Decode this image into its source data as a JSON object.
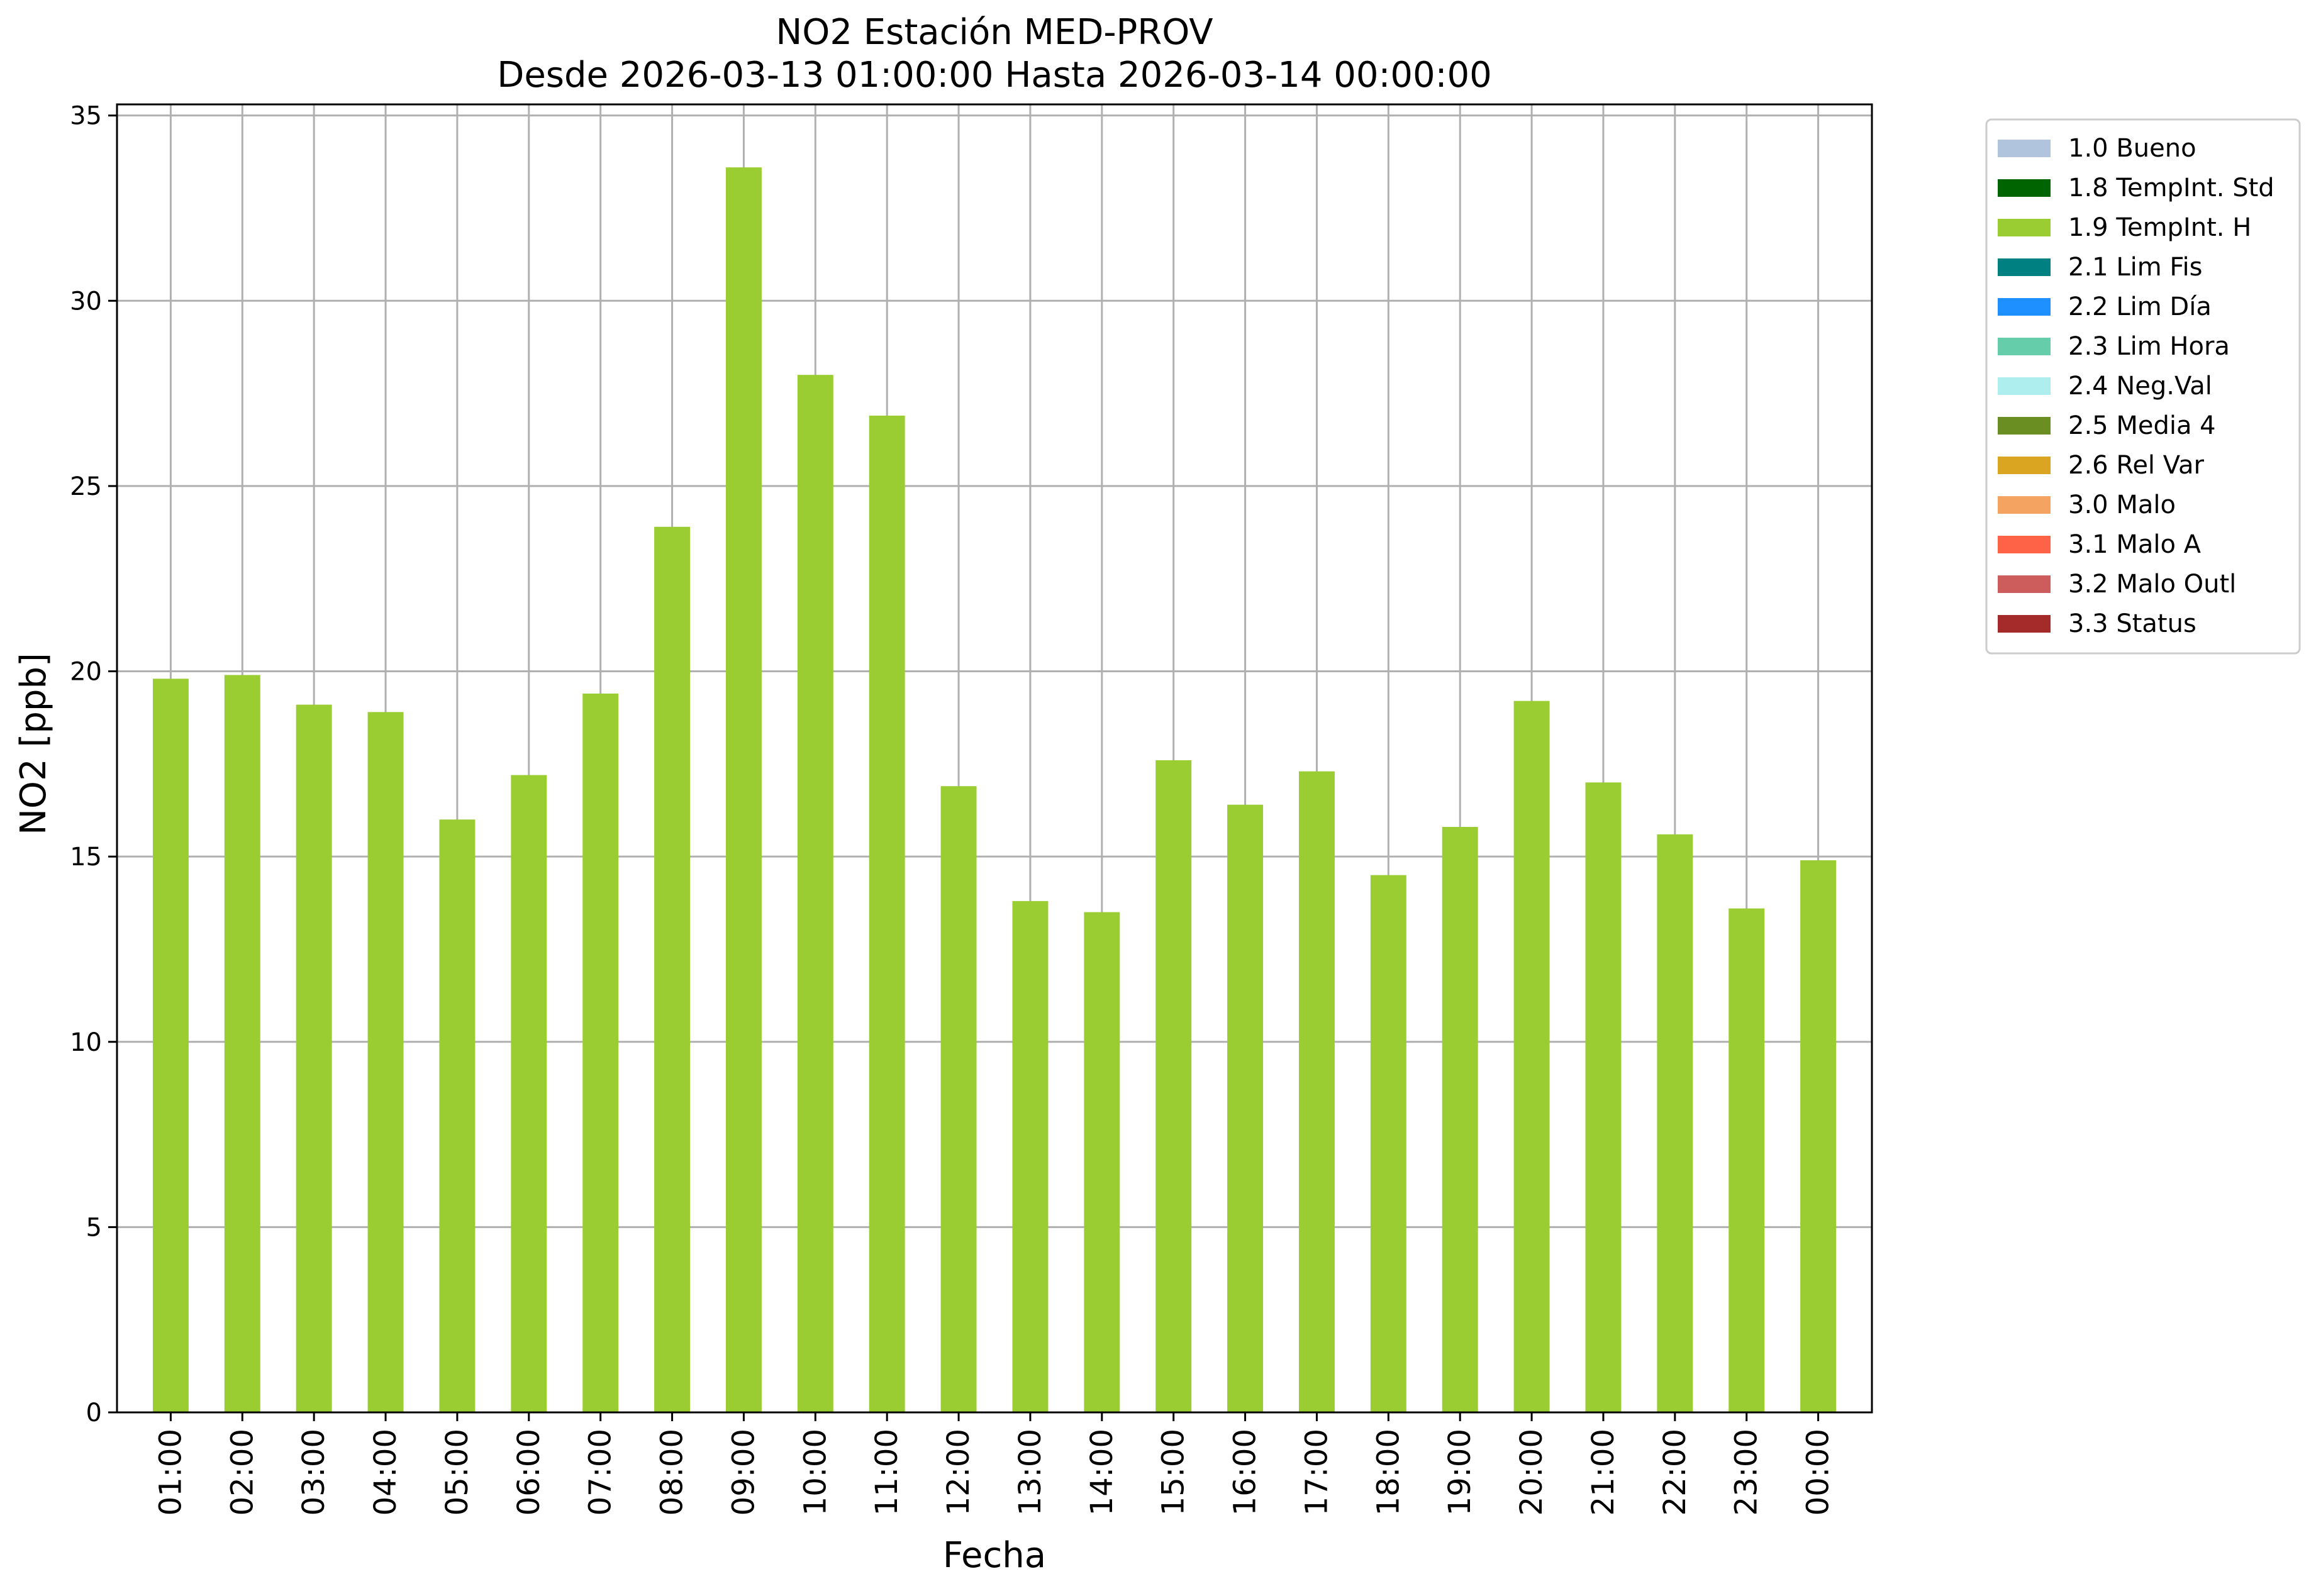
{
  "chart_data": {
    "type": "bar",
    "title": "NO2 Estación MED-PROV",
    "subtitle": "Desde 2026-03-13 01:00:00 Hasta 2026-03-14 00:00:00",
    "xlabel": "Fecha",
    "ylabel": "NO2 [ppb]",
    "ylim": [
      0,
      35.3
    ],
    "yticks": [
      "0",
      "5",
      "10",
      "15",
      "20",
      "25",
      "30",
      "35"
    ],
    "ytick_values": [
      0,
      5,
      10,
      15,
      20,
      25,
      30,
      35
    ],
    "grid": true,
    "legend_position": "outside-top-right",
    "categories": [
      "01:00",
      "02:00",
      "03:00",
      "04:00",
      "05:00",
      "06:00",
      "07:00",
      "08:00",
      "09:00",
      "10:00",
      "11:00",
      "12:00",
      "13:00",
      "14:00",
      "15:00",
      "16:00",
      "17:00",
      "18:00",
      "19:00",
      "20:00",
      "21:00",
      "22:00",
      "23:00",
      "00:00"
    ],
    "series": [
      {
        "name": "1.9 TempInt. H",
        "color": "#9acd32",
        "values": [
          19.8,
          19.9,
          19.1,
          18.9,
          16.0,
          17.2,
          19.4,
          23.9,
          33.6,
          28.0,
          26.9,
          16.9,
          13.8,
          13.5,
          17.6,
          16.4,
          17.3,
          14.5,
          15.8,
          19.2,
          17.0,
          15.6,
          13.6,
          14.9
        ]
      }
    ],
    "legend": [
      {
        "label": "1.0 Bueno",
        "color": "#b0c4de"
      },
      {
        "label": "1.8 TempInt. Std",
        "color": "#006400"
      },
      {
        "label": "1.9 TempInt. H",
        "color": "#9acd32"
      },
      {
        "label": "2.1 Lim Fis",
        "color": "#008080"
      },
      {
        "label": "2.2 Lim Día",
        "color": "#1e90ff"
      },
      {
        "label": "2.3 Lim Hora",
        "color": "#66cdaa"
      },
      {
        "label": "2.4 Neg.Val",
        "color": "#afeeee"
      },
      {
        "label": "2.5 Media 4",
        "color": "#6b8e23"
      },
      {
        "label": "2.6 Rel Var",
        "color": "#daa520"
      },
      {
        "label": "3.0 Malo",
        "color": "#f4a460"
      },
      {
        "label": "3.1 Malo A",
        "color": "#ff6347"
      },
      {
        "label": "3.2 Malo Outl",
        "color": "#cd5c5c"
      },
      {
        "label": "3.3 Status",
        "color": "#a52a2a"
      }
    ]
  }
}
